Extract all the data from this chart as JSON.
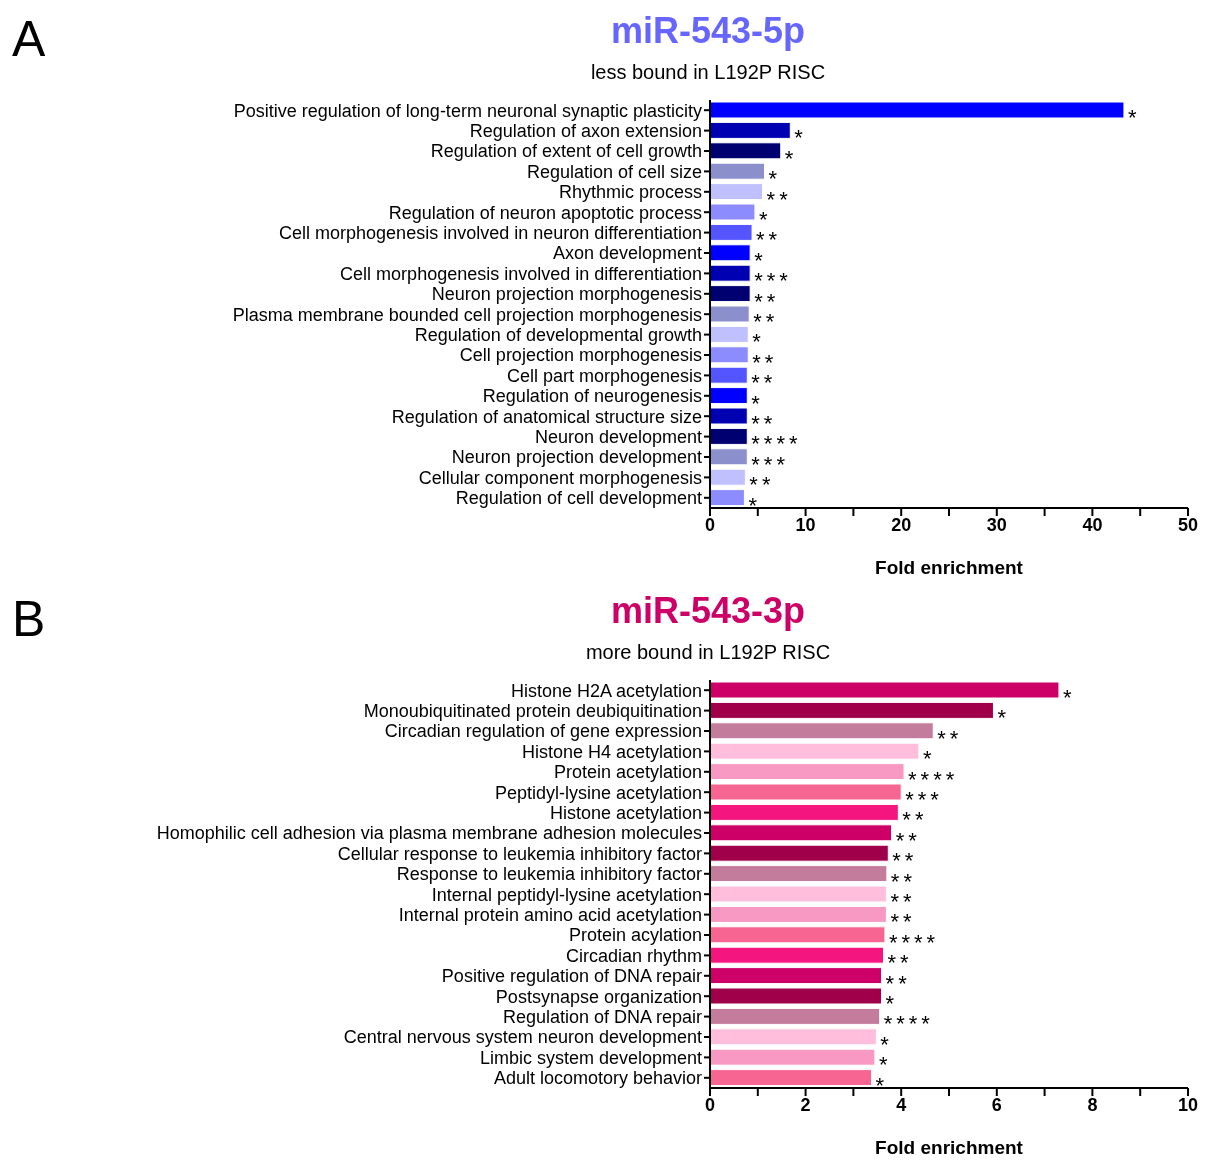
{
  "chart_data": [
    {
      "type": "bar",
      "orientation": "horizontal",
      "title": "miR-543-5p",
      "subtitle": "less bound in L192P RISC",
      "xlabel": "Fold enrichment",
      "annotations": [
        "A"
      ],
      "categories": [
        "Positive regulation of long-term neuronal synaptic plasticity",
        "Regulation of axon extension",
        "Regulation of extent of cell growth",
        "Regulation of cell size",
        "Rhythmic process",
        "Regulation of neuron apoptotic process",
        "Cell morphogenesis involved in neuron differentiation",
        "Axon development",
        "Cell morphogenesis involved in differentiation",
        "Neuron projection morphogenesis",
        "Plasma membrane bounded cell projection morphogenesis",
        "Regulation of developmental growth",
        "Cell projection morphogenesis",
        "Cell part morphogenesis",
        "Regulation of neurogenesis",
        "Regulation of anatomical structure size",
        "Neuron development",
        "Neuron projection development",
        "Cellular component morphogenesis",
        "Regulation of cell development"
      ],
      "values": [
        43.3,
        8.4,
        7.4,
        5.7,
        5.5,
        4.7,
        4.4,
        4.2,
        4.2,
        4.2,
        4.1,
        4.0,
        4.0,
        3.9,
        3.9,
        3.9,
        3.9,
        3.9,
        3.7,
        3.6
      ],
      "value_labels": [
        "*",
        "*",
        "*",
        "*",
        "**",
        "*",
        "**",
        "*",
        "***",
        "**",
        "**",
        "*",
        "**",
        "**",
        "*",
        "**",
        "****",
        "***",
        "**",
        "*"
      ],
      "colors": [
        "#0000ff",
        "#0000b3",
        "#000070",
        "#8b8fcc",
        "#c0c0ff",
        "#8c8cff",
        "#5555ff",
        "#0000ff",
        "#0000b3",
        "#000070",
        "#8b8fcc",
        "#c0c0ff",
        "#8c8cff",
        "#5555ff",
        "#0000ff",
        "#0000b3",
        "#000070",
        "#8b8fcc",
        "#c0c0ff",
        "#8c8cff"
      ],
      "xlim": [
        0,
        50
      ],
      "xticks": [
        0,
        {
          "value": 5,
          "label": null
        },
        10,
        {
          "value": 15,
          "label": null
        },
        20,
        {
          "value": 25,
          "label": null
        },
        30,
        {
          "value": 35,
          "label": null
        },
        40,
        {
          "value": 45,
          "label": null
        },
        50
      ]
    },
    {
      "type": "bar",
      "orientation": "horizontal",
      "title": "miR-543-3p",
      "subtitle": "more bound in L192P RISC",
      "xlabel": "Fold enrichment",
      "annotations": [
        "B"
      ],
      "categories": [
        "Histone H2A acetylation",
        "Monoubiquitinated protein deubiquitination",
        "Circadian regulation of gene expression",
        "Histone H4 acetylation",
        "Protein acetylation",
        "Peptidyl-lysine acetylation",
        "Histone acetylation",
        "Homophilic cell adhesion via plasma membrane adhesion molecules",
        "Cellular response to leukemia inhibitory factor",
        "Response to leukemia inhibitory factor",
        "Internal peptidyl-lysine acetylation",
        "Internal protein amino acid acetylation",
        "Protein acylation",
        "Circadian rhythm",
        "Positive regulation of DNA repair",
        "Postsynapse organization",
        "Regulation of DNA repair",
        "Central nervous system neuron development",
        "Limbic system development",
        "Adult locomotory behavior"
      ],
      "values": [
        7.3,
        5.93,
        4.67,
        4.37,
        4.06,
        4.0,
        3.94,
        3.8,
        3.73,
        3.7,
        3.69,
        3.69,
        3.66,
        3.63,
        3.59,
        3.59,
        3.55,
        3.48,
        3.45,
        3.38
      ],
      "value_labels": [
        "*",
        "*",
        "**",
        "*",
        "****",
        "***",
        "**",
        "**",
        "**",
        "**",
        "**",
        "**",
        "****",
        "**",
        "**",
        "*",
        "****",
        "*",
        "*",
        "*"
      ],
      "colors": [
        "#cc0066",
        "#a0004a",
        "#c47c9c",
        "#ffbfdc",
        "#f799c3",
        "#f76592",
        "#f5157e",
        "#cc0066",
        "#a0004a",
        "#c47c9c",
        "#ffbfdc",
        "#f799c3",
        "#f76592",
        "#f5157e",
        "#cc0066",
        "#a0004a",
        "#c47c9c",
        "#ffbfdc",
        "#f799c3",
        "#f76592"
      ],
      "xlim": [
        0,
        10
      ],
      "xticks": [
        0,
        {
          "value": 1,
          "label": null
        },
        2,
        {
          "value": 3,
          "label": null
        },
        4,
        {
          "value": 5,
          "label": null
        },
        6,
        {
          "value": 7,
          "label": null
        },
        8,
        {
          "value": 9,
          "label": null
        },
        10
      ]
    }
  ]
}
